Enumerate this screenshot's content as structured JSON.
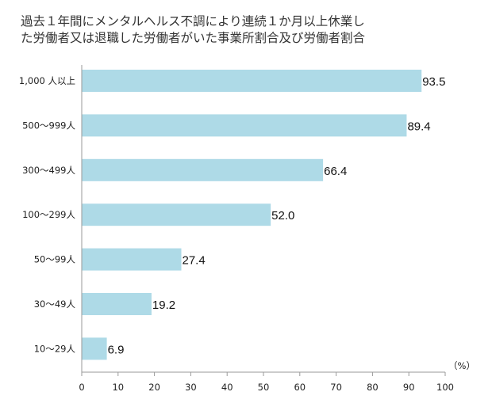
{
  "chart_data": {
    "type": "bar",
    "orientation": "horizontal",
    "title_lines": [
      "過去１年間にメンタルヘルス不調により連続１か月以上休業し",
      "た労働者又は退職した労働者がいた事業所割合及び労働者割合"
    ],
    "categories": [
      "1,000 人以上",
      "500～999人",
      "300～499人",
      "100～299人",
      "50～99人",
      "30～49人",
      "10～29人"
    ],
    "values": [
      93.5,
      89.4,
      66.4,
      52.0,
      27.4,
      19.2,
      6.9
    ],
    "value_labels": [
      "93.5",
      "89.4",
      "66.4",
      "52.0",
      "27.4",
      "19.2",
      "6.9"
    ],
    "xlim": [
      0,
      100
    ],
    "x_ticks": [
      0,
      10,
      20,
      30,
      40,
      50,
      60,
      70,
      80,
      90,
      100
    ],
    "x_unit": "（%）",
    "bar_color": "#aedae7",
    "grid": false,
    "legend": "none"
  }
}
